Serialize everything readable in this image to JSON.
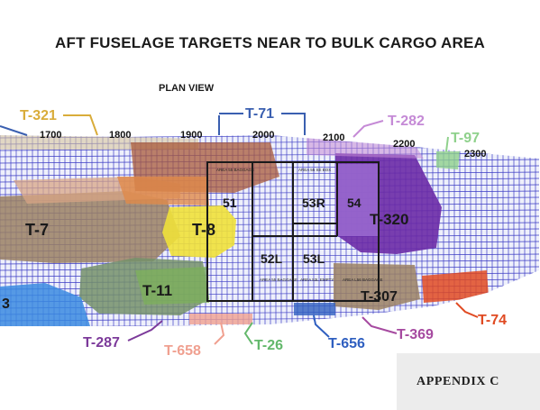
{
  "title": "AFT FUSELAGE TARGETS NEAR TO BULK CARGO AREA",
  "subtitle": "PLAN VIEW",
  "stations": [
    "1700",
    "1800",
    "1900",
    "2000",
    "2100",
    "2200",
    "2300"
  ],
  "targets": {
    "t321": "T-321",
    "t71": "T-71",
    "t282": "T-282",
    "t97": "T-97",
    "t7": "T-7",
    "t8": "T-8",
    "t320": "T-320",
    "t11": "T-11",
    "t307": "T-307",
    "t287": "T-287",
    "t658": "T-658",
    "t26": "T-26",
    "t656": "T-656",
    "t369": "T-369",
    "t74": "T-74",
    "t3": "3"
  },
  "areas": {
    "a51": "51",
    "a53r": "53R",
    "a54": "54",
    "a52l": "52L",
    "a53l": "53L",
    "a51_note": "AREA 55 BAGGAGE",
    "a53r_note": "AREA 55 SE BOX",
    "a52l_note": "AREA 55 BAGGAGE",
    "a53l_note": "AREA 53L EMPTY",
    "a54_note": "AREA L56 BAGGAGE"
  },
  "appendix": "APPENDIX C",
  "colors": {
    "t321": "#d9ac3a",
    "t71": "#3a5fb0",
    "t282": "#c58ad6",
    "t97": "#8fd18c",
    "t7": "#9a8063",
    "t8": "#f0e13a",
    "t320": "#6a2aa6",
    "t11": "#74906a",
    "t307": "#d68a5a",
    "t287": "#7c3a9a",
    "t658": "#f0a090",
    "t26": "#63b86b",
    "t656": "#2f5fc0",
    "t369": "#a64aa0",
    "t74": "#e04a22",
    "grid": "#3b3bc4"
  }
}
